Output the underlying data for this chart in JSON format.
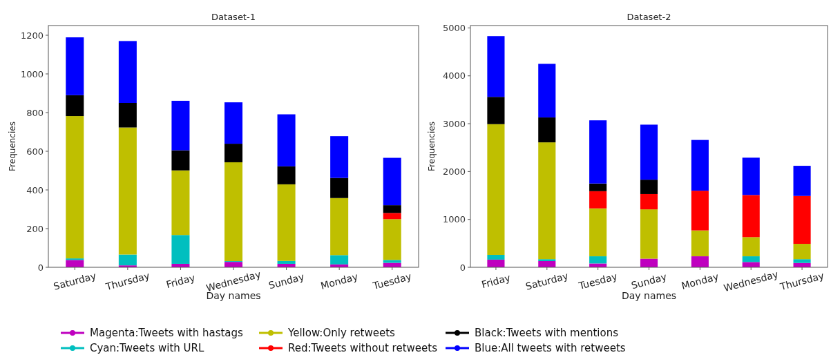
{
  "chart_data": [
    {
      "type": "bar",
      "title": "Dataset-1",
      "xlabel": "Day names",
      "ylabel": "Frequencies",
      "stacked": true,
      "legend": "bottom",
      "categories": [
        "Saturday",
        "Thursday",
        "Friday",
        "Wednesday",
        "Sunday",
        "Monday",
        "Tuesday"
      ],
      "ylim": [
        0,
        1250
      ],
      "yticks": [
        0,
        200,
        400,
        600,
        800,
        1000,
        1200
      ],
      "series": [
        {
          "name": "Magenta:Tweets with hastags",
          "color": "#bf00bf",
          "values": [
            38,
            10,
            18,
            28,
            18,
            15,
            23
          ]
        },
        {
          "name": "Cyan:Tweets with URL",
          "color": "#00bfbf",
          "values": [
            8,
            56,
            149,
            4,
            15,
            48,
            15
          ]
        },
        {
          "name": "Yellow:Only retweets",
          "color": "#bfbf00",
          "values": [
            736,
            657,
            334,
            511,
            396,
            295,
            211
          ]
        },
        {
          "name": "Red:Tweets without retweets",
          "color": "#ff0000",
          "values": [
            0,
            0,
            0,
            0,
            0,
            0,
            32
          ]
        },
        {
          "name": "Black:Tweets with mentions",
          "color": "#000000",
          "values": [
            108,
            127,
            104,
            96,
            93,
            104,
            40
          ]
        },
        {
          "name": "Blue:All tweets with retweets",
          "color": "#0000ff",
          "values": [
            299,
            320,
            256,
            214,
            269,
            216,
            245
          ]
        }
      ]
    },
    {
      "type": "bar",
      "title": "Dataset-2",
      "xlabel": "Day names",
      "ylabel": "Frequencies",
      "stacked": true,
      "categories": [
        "Friday",
        "Saturday",
        "Tuesday",
        "Sunday",
        "Monday",
        "Wednesday",
        "Thursday"
      ],
      "ylim": [
        0,
        5050
      ],
      "yticks": [
        0,
        1000,
        2000,
        3000,
        4000,
        5000
      ],
      "series": [
        {
          "color": "#bf00bf",
          "values": [
            160,
            130,
            80,
            180,
            230,
            110,
            90
          ]
        },
        {
          "color": "#00bfbf",
          "values": [
            100,
            40,
            150,
            null,
            0,
            120,
            80
          ]
        },
        {
          "color": "#bfbf00",
          "values": [
            2730,
            2440,
            1000,
            1030,
            540,
            400,
            320
          ]
        },
        {
          "color": "#ff0000",
          "values": [
            0,
            0,
            360,
            320,
            830,
            880,
            1000
          ]
        },
        {
          "color": "#000000",
          "values": [
            570,
            520,
            160,
            300,
            0,
            0,
            0
          ]
        },
        {
          "color": "#0000ff",
          "values": [
            1270,
            1120,
            1320,
            1150,
            1060,
            780,
            630
          ]
        }
      ]
    }
  ]
}
